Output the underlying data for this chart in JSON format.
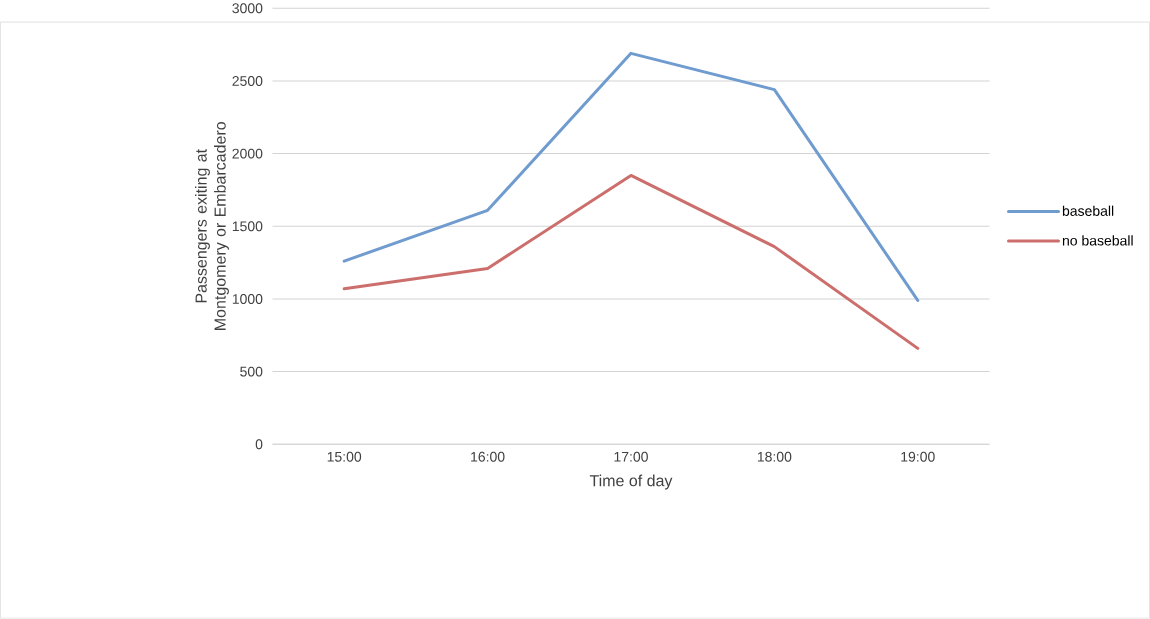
{
  "chart_data": {
    "type": "line",
    "xlabel": "Time of day",
    "ylabel": "Passengers exiting at Montgomery or Embarcadero",
    "categories": [
      "15:00",
      "16:00",
      "17:00",
      "18:00",
      "19:00"
    ],
    "series": [
      {
        "name": "baseball",
        "color": "#6f9bcf",
        "values": [
          1260,
          1610,
          2690,
          2440,
          990
        ]
      },
      {
        "name": "no baseball",
        "color": "#cc6e6c",
        "values": [
          1070,
          1210,
          1850,
          1360,
          660
        ]
      }
    ],
    "ylim": [
      0,
      3000
    ],
    "yticks": [
      0,
      500,
      1000,
      1500,
      2000,
      2500,
      3000
    ],
    "grid": "y",
    "legend": "right",
    "marker": "none",
    "line_style": "solid"
  }
}
